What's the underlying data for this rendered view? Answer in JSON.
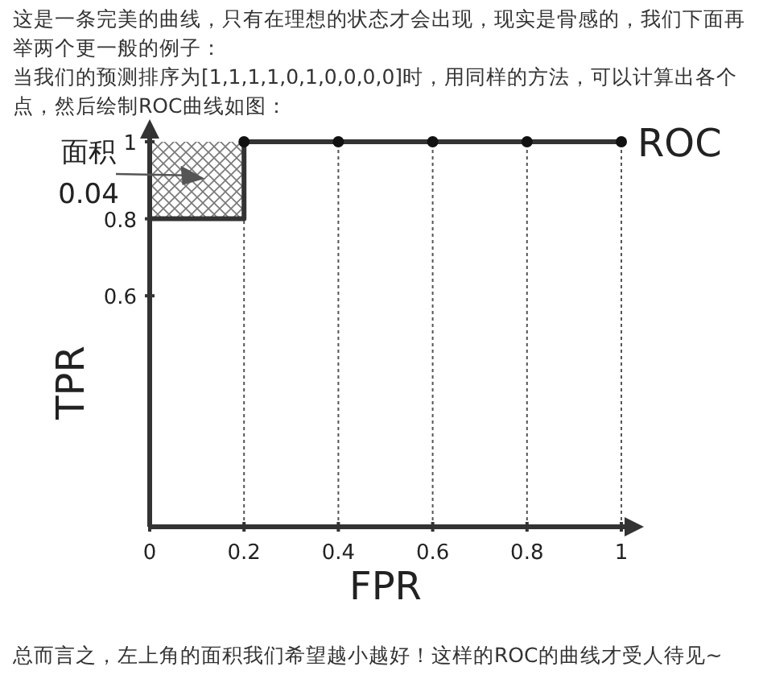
{
  "chart_data": {
    "type": "line",
    "title": "这是一条完美的曲线，只有在理想的状态才会出现，现实是骨感的，我们下面再举两个更一般的例子：",
    "subtitle": "当我们的预测排序为[1,1,1,1,0,1,0,0,0,0]时，用同样的方法，可以计算出各个点，然后绘制ROC曲线如图：",
    "xlabel": "FPR",
    "ylabel": "TPR",
    "xlim": [
      0,
      1
    ],
    "ylim": [
      0,
      1
    ],
    "xticks": [
      0,
      0.2,
      0.4,
      0.6,
      0.8,
      1
    ],
    "yticks": [
      0.6,
      0.8,
      1
    ],
    "grid": "x",
    "series": [
      {
        "name": "ROC",
        "type": "line",
        "color": "#333333",
        "x": [
          0,
          0,
          0.2,
          0.2,
          0.4,
          0.6,
          0.8,
          1
        ],
        "values": [
          0,
          0.8,
          0.8,
          1,
          1,
          1,
          1,
          1
        ]
      },
      {
        "type": "scatter",
        "color": "#111111",
        "x": [
          0.2,
          0.4,
          0.6,
          0.8,
          1
        ],
        "values": [
          1,
          1,
          1,
          1,
          1
        ]
      }
    ],
    "annotations": [
      "面积 0.04",
      "总而言之，左上角的面积我们希望越小越好！这样的ROC的曲线才受人待见~"
    ]
  }
}
